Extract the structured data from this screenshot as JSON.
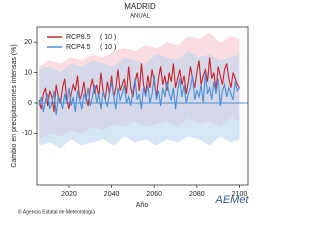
{
  "chart_data": {
    "type": "line",
    "title": "MADRID",
    "subtitle": "ANUAL",
    "y_label": "Cambio en precipitaciones intensas (%)",
    "x_label": "Año",
    "xlim": [
      2005,
      2104
    ],
    "ylim": [
      -27,
      25
    ],
    "xticks": [
      2020,
      2040,
      2060,
      2080,
      2100
    ],
    "yticks": [
      -10,
      0,
      10,
      20
    ],
    "zero_line": true,
    "legend": "upper left",
    "x": [
      2006,
      2007,
      2008,
      2009,
      2010,
      2011,
      2012,
      2013,
      2014,
      2015,
      2016,
      2017,
      2018,
      2019,
      2020,
      2021,
      2022,
      2023,
      2024,
      2025,
      2026,
      2027,
      2028,
      2029,
      2030,
      2031,
      2032,
      2033,
      2034,
      2035,
      2036,
      2037,
      2038,
      2039,
      2040,
      2041,
      2042,
      2043,
      2044,
      2045,
      2046,
      2047,
      2048,
      2049,
      2050,
      2051,
      2052,
      2053,
      2054,
      2055,
      2056,
      2057,
      2058,
      2059,
      2060,
      2061,
      2062,
      2063,
      2064,
      2065,
      2066,
      2067,
      2068,
      2069,
      2070,
      2071,
      2072,
      2073,
      2074,
      2075,
      2076,
      2077,
      2078,
      2079,
      2080,
      2081,
      2082,
      2083,
      2084,
      2085,
      2086,
      2087,
      2088,
      2089,
      2090,
      2091,
      2092,
      2093,
      2094,
      2095,
      2096,
      2097,
      2098,
      2099,
      2100
    ],
    "series": [
      {
        "name": "RCP8.5",
        "count": "( 10 )",
        "color": "#cc2229",
        "band_color": "#f5c6cc",
        "values": [
          1,
          -2,
          3,
          5,
          -1,
          4,
          2,
          -3,
          6,
          2,
          0,
          5,
          8,
          1,
          -2,
          3,
          6,
          4,
          9,
          1,
          3,
          7,
          2,
          -1,
          5,
          8,
          3,
          6,
          2,
          10,
          4,
          1,
          7,
          3,
          9,
          2,
          5,
          11,
          4,
          6,
          8,
          3,
          12,
          5,
          2,
          7,
          10,
          4,
          13,
          6,
          3,
          9,
          5,
          11,
          7,
          2,
          8,
          12,
          6,
          9,
          4,
          10,
          7,
          13,
          5,
          8,
          11,
          6,
          9,
          3,
          7,
          12,
          8,
          5,
          10,
          14,
          6,
          9,
          11,
          7,
          15,
          8,
          10,
          4,
          12,
          9,
          6,
          11,
          13,
          8,
          5,
          10,
          8,
          6,
          5
        ],
        "band": {
          "x": [
            2006,
            2011,
            2016,
            2021,
            2026,
            2031,
            2036,
            2041,
            2046,
            2051,
            2056,
            2061,
            2066,
            2071,
            2076,
            2081,
            2086,
            2091,
            2096,
            2100
          ],
          "lower": [
            -12,
            -10,
            -11,
            -9,
            -10,
            -8,
            -9,
            -7,
            -8,
            -6,
            -8,
            -7,
            -6,
            -8,
            -5,
            -7,
            -6,
            -8,
            -5,
            -6
          ],
          "upper": [
            12,
            14,
            13,
            15,
            14,
            16,
            15,
            17,
            18,
            17,
            19,
            18,
            20,
            19,
            22,
            21,
            23,
            20,
            22,
            21
          ]
        }
      },
      {
        "name": "RCP4.5",
        "count": "( 10 )",
        "color": "#4a8fd8",
        "band_color": "#bcd6ee",
        "values": [
          -1,
          2,
          -3,
          1,
          3,
          -2,
          0,
          4,
          -4,
          2,
          1,
          -2,
          3,
          0,
          5,
          -1,
          2,
          -3,
          4,
          1,
          -2,
          3,
          1,
          5,
          -1,
          2,
          6,
          0,
          3,
          -2,
          4,
          1,
          -1,
          3,
          7,
          2,
          -2,
          5,
          1,
          3,
          6,
          0,
          2,
          -1,
          4,
          8,
          1,
          3,
          -2,
          5,
          2,
          6,
          0,
          3,
          9,
          1,
          4,
          -1,
          5,
          2,
          7,
          3,
          1,
          5,
          -2,
          4,
          8,
          2,
          6,
          0,
          3,
          5,
          9,
          1,
          4,
          2,
          6,
          0,
          10,
          3,
          5,
          1,
          7,
          3,
          8,
          -1,
          4,
          6,
          2,
          5,
          3,
          1,
          7,
          4,
          5
        ],
        "band": {
          "x": [
            2006,
            2011,
            2016,
            2021,
            2026,
            2031,
            2036,
            2041,
            2046,
            2051,
            2056,
            2061,
            2066,
            2071,
            2076,
            2081,
            2086,
            2091,
            2096,
            2100
          ],
          "lower": [
            -14,
            -13,
            -15,
            -12,
            -14,
            -13,
            -12,
            -14,
            -11,
            -13,
            -12,
            -14,
            -12,
            -13,
            -11,
            -12,
            -14,
            -11,
            -13,
            -12
          ],
          "upper": [
            11,
            12,
            10,
            13,
            12,
            14,
            13,
            12,
            15,
            14,
            13,
            16,
            15,
            14,
            17,
            15,
            16,
            14,
            15,
            16
          ]
        }
      }
    ]
  },
  "footer": "© Agencia Estatal de Meteorología",
  "logo": "AEMet"
}
